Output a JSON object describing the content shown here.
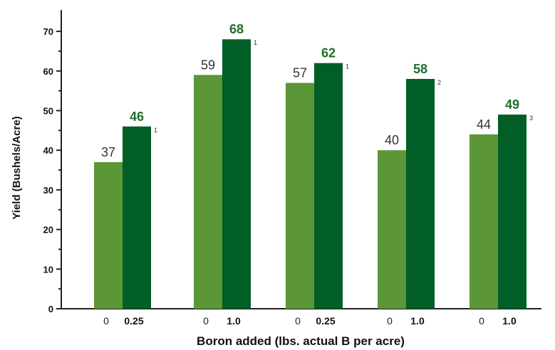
{
  "chart_data": {
    "type": "bar",
    "title": "",
    "xlabel": "Boron added (lbs. actual B per acre)",
    "ylabel": "Yield (Bushels/Acre)",
    "ylim": [
      0,
      75
    ],
    "yticks": [
      "0",
      "10",
      "20",
      "30",
      "40",
      "50",
      "60",
      "70"
    ],
    "grid": false,
    "legend": "none",
    "colors": {
      "control": "#5b9637",
      "treated": "#005e26",
      "treated_label": "#1f6e28",
      "control_label": "#333333"
    },
    "groups": [
      {
        "control_rate": "0",
        "treated_rate": "0.25",
        "control": 37,
        "treated": 46,
        "note": "1"
      },
      {
        "control_rate": "0",
        "treated_rate": "1.0",
        "control": 59,
        "treated": 68,
        "note": "1"
      },
      {
        "control_rate": "0",
        "treated_rate": "0.25",
        "control": 57,
        "treated": 62,
        "note": "1"
      },
      {
        "control_rate": "0",
        "treated_rate": "1.0",
        "control": 40,
        "treated": 58,
        "note": "2"
      },
      {
        "control_rate": "0",
        "treated_rate": "1.0",
        "control": 44,
        "treated": 49,
        "note": "3"
      }
    ]
  }
}
